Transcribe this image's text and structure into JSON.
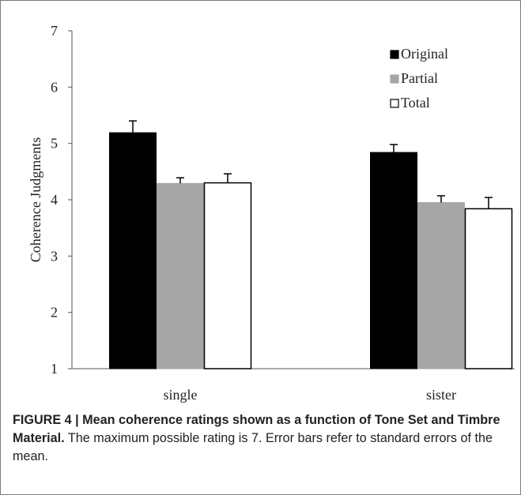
{
  "chart_data": {
    "type": "bar",
    "categories": [
      "single",
      "sister"
    ],
    "series": [
      {
        "name": "Original",
        "values": [
          5.19,
          4.84
        ],
        "errors": [
          0.21,
          0.14
        ],
        "color": "#000000"
      },
      {
        "name": "Partial",
        "values": [
          4.29,
          3.95
        ],
        "errors": [
          0.1,
          0.12
        ],
        "color": "#a6a6a6"
      },
      {
        "name": "Total",
        "values": [
          4.3,
          3.84
        ],
        "errors": [
          0.16,
          0.2
        ],
        "color": "#ffffff"
      }
    ],
    "ylabel": "Coherence Judgments",
    "xlabel": "",
    "ylim": [
      1,
      7
    ],
    "yticks": [
      "1",
      "2",
      "3",
      "4",
      "5",
      "6",
      "7"
    ],
    "grid": false,
    "legend_position": "top-right"
  },
  "caption": {
    "label": "FIGURE 4 | Mean coherence ratings shown as a function of Tone Set and Timbre Material.",
    "text": " The maximum possible rating is 7. Error bars refer to standard errors of the mean."
  }
}
